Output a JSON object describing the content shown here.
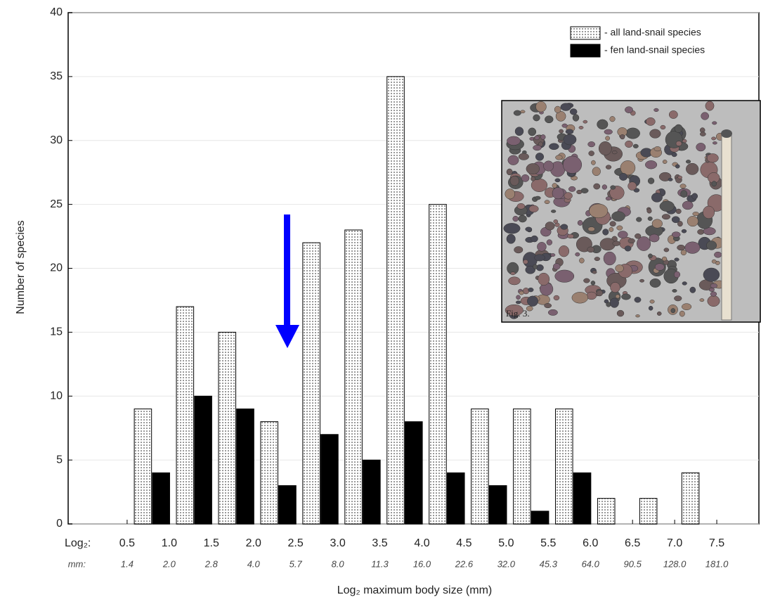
{
  "chart_data": {
    "type": "histogram",
    "x_label": "Log₂ maximum body size (mm)",
    "y_label": "Number of species",
    "bins": [
      0.5,
      1,
      1.5,
      2,
      2.5,
      3,
      3.5,
      4,
      4.5,
      5,
      5.5,
      6,
      6.5,
      7,
      7.5
    ],
    "series": [
      {
        "name": "- all land-snail species",
        "color": "#e4e4e4",
        "values": [
          9,
          17,
          15,
          8,
          22,
          23,
          35,
          25,
          9,
          9,
          9,
          2,
          2,
          4
        ]
      },
      {
        "name": "- fen land-snail species",
        "color": "#000000",
        "values": [
          4,
          10,
          9,
          3,
          7,
          5,
          8,
          4,
          3,
          1,
          4,
          0,
          0,
          0
        ]
      }
    ],
    "xlim": [
      -0.2,
      8.0
    ],
    "ylim": [
      0,
      40
    ],
    "xticks": [
      {
        "value": 0.5,
        "label": "0.5"
      },
      {
        "value": 1,
        "label": "1.0"
      },
      {
        "value": 1.5,
        "label": "1.5"
      },
      {
        "value": 2,
        "label": "2.0"
      },
      {
        "value": 2.5,
        "label": "2.5"
      },
      {
        "value": 3,
        "label": "3.0"
      },
      {
        "value": 3.5,
        "label": "3.5"
      },
      {
        "value": 4,
        "label": "4.0"
      },
      {
        "value": 4.5,
        "label": "4.5"
      },
      {
        "value": 5,
        "label": "5.0"
      },
      {
        "value": 5.5,
        "label": "5.5"
      },
      {
        "value": 6,
        "label": "6.0"
      },
      {
        "value": 6.5,
        "label": "6.5"
      },
      {
        "value": 7,
        "label": "7.0"
      },
      {
        "value": 7.5,
        "label": "7.5"
      }
    ],
    "xtick_mm_labels": [
      "1.4",
      "2.0",
      "2.8",
      "4.0",
      "5.7",
      "8.0",
      "11.3",
      "16.0",
      "22.6",
      "32.0",
      "45.3",
      "64.0",
      "90.5",
      "128.0",
      "181.0"
    ],
    "xtick_row_labels": [
      "Log₂:",
      "mm:"
    ],
    "yticks": [
      0,
      5,
      10,
      15,
      20,
      25,
      30,
      35,
      40
    ],
    "grid": true,
    "legend": "upper right",
    "inset_caption": "Fig. 3."
  }
}
